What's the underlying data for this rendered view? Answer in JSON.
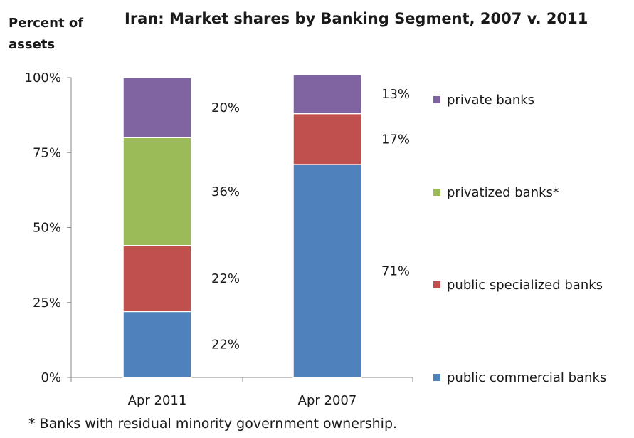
{
  "chart_data": {
    "type": "bar",
    "stacked": true,
    "title": "Iran: Market shares by Banking Segment, 2007 v. 2011",
    "ylabel": "Percent of assets",
    "xlabel": "",
    "ylim": [
      0,
      100
    ],
    "y_ticks": [
      "0%",
      "25%",
      "50%",
      "75%",
      "100%"
    ],
    "y_tick_values": [
      0,
      25,
      50,
      75,
      100
    ],
    "grid": false,
    "legend_position": "right",
    "categories": [
      "Apr 2011",
      "Apr 2007"
    ],
    "series": [
      {
        "name": "public commercial banks",
        "color": "#4f81bd",
        "values": [
          22,
          71
        ],
        "labels": [
          "22%",
          "71%"
        ]
      },
      {
        "name": "public specialized banks",
        "color": "#c0504d",
        "values": [
          22,
          17
        ],
        "labels": [
          "22%",
          "17%"
        ]
      },
      {
        "name": "privatized banks*",
        "color": "#9bbb59",
        "values": [
          36,
          0
        ],
        "labels": [
          "36%",
          ""
        ]
      },
      {
        "name": "private banks",
        "color": "#8064a2",
        "values": [
          20,
          13
        ],
        "labels": [
          "20%",
          "13%"
        ]
      }
    ],
    "footnote": "* Banks with residual minority government ownership."
  }
}
